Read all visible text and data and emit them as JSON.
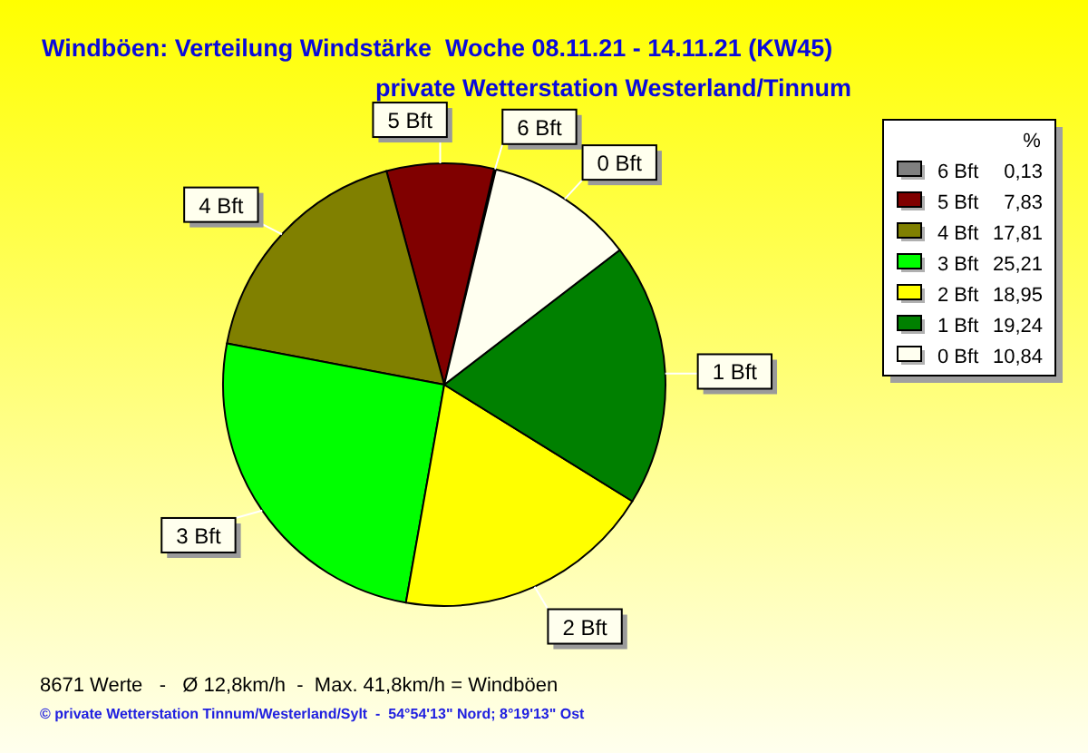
{
  "chart_data": {
    "type": "pie",
    "title": "Windböen: Verteilung Windstärke  Woche 08.11.21 - 14.11.21 (KW45)",
    "subtitle": "private Wetterstation Westerland/Tinnum",
    "legend_title": "%",
    "categories": [
      "6 Bft",
      "5 Bft",
      "4 Bft",
      "3 Bft",
      "2 Bft",
      "1 Bft",
      "0 Bft"
    ],
    "values": [
      0.13,
      7.83,
      17.81,
      25.21,
      18.95,
      19.24,
      10.84
    ],
    "value_labels": [
      "0,13",
      "7,83",
      "17,81",
      "25,21",
      "18,95",
      "19,24",
      "10,84"
    ],
    "colors": [
      "#808080",
      "#800000",
      "#808000",
      "#00ff00",
      "#ffff00",
      "#008000",
      "#fffff0"
    ],
    "legend": "top right",
    "annotations": [
      "8671 Werte   -   Ø 12,8km/h  -  Max. 41,8km/h = Windböen",
      "© private Wetterstation Tinnum/Westerland/Sylt  -  54°54'13\" Nord; 8°19'13\" Ost"
    ]
  }
}
